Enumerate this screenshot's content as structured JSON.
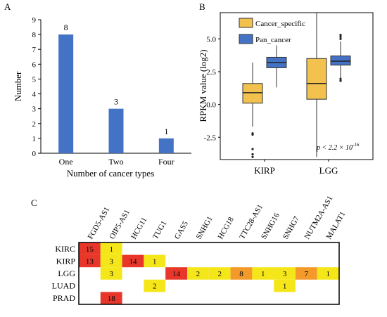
{
  "panel_labels": {
    "a": "A",
    "b": "B",
    "c": "C"
  },
  "chart_data": [
    {
      "type": "bar",
      "panel": "A",
      "categories": [
        "One",
        "Two",
        "Four"
      ],
      "values": [
        8,
        3,
        1
      ],
      "data_labels": [
        "8",
        "3",
        "1"
      ],
      "xlabel": "Number of cancer types",
      "ylabel": "Number",
      "ylim": [
        0,
        9
      ],
      "yticks": [
        "0",
        "1",
        "2",
        "3",
        "4",
        "5",
        "6",
        "7",
        "8",
        "9"
      ],
      "colors": {
        "bar": "#4472c4"
      }
    },
    {
      "type": "box",
      "panel": "B",
      "categories": [
        "KIRP",
        "LGG"
      ],
      "ylabel": "RPKM value (log2)",
      "yticks": [
        "-2.5",
        "0.0",
        "2.5",
        "5.0"
      ],
      "ytick_values": [
        -2.5,
        0,
        2.5,
        5
      ],
      "ylim": [
        -4.2,
        7.0
      ],
      "legend_position": "top-left",
      "annotation": "p < 2.2 × 10",
      "annotation_exp": "-16",
      "series": [
        {
          "name": "Cancer_specific",
          "color": "#f2c14e",
          "boxes": [
            {
              "q1": 0.1,
              "median": 0.9,
              "q3": 1.6,
              "wmin": -1.7,
              "wmax": 3.2,
              "outliers": [
                -2.2,
                -2.3,
                -3.4,
                -3.8,
                -4.0
              ]
            },
            {
              "q1": 0.4,
              "median": 1.6,
              "q3": 3.5,
              "wmin": -4.0,
              "wmax": 7.0,
              "outliers": []
            }
          ]
        },
        {
          "name": "Pan_cancer",
          "color": "#4472c4",
          "boxes": [
            {
              "q1": 2.8,
              "median": 3.2,
              "q3": 3.6,
              "wmin": 1.3,
              "wmax": 4.5,
              "outliers": []
            },
            {
              "q1": 3.0,
              "median": 3.3,
              "q3": 3.7,
              "wmin": 2.0,
              "wmax": 4.8,
              "outliers": [
                1.8,
                1.95,
                5.0,
                5.15,
                5.3
              ]
            }
          ]
        }
      ]
    },
    {
      "type": "heatmap",
      "panel": "C",
      "columns": [
        "FGD5-AS1",
        "OIP5-AS1",
        "HCG11",
        "TUG1",
        "GAS5",
        "SNHG1",
        "HCG18",
        "TTC28-AS1",
        "SNHG16",
        "SNHG7",
        "NUTM2A-AS1",
        "MALAT1"
      ],
      "rows": [
        "KIRC",
        "KIRP",
        "LGG",
        "LUAD",
        "PRAD"
      ],
      "cells": [
        {
          "row": 0,
          "col": 0,
          "value": 15,
          "label": "15"
        },
        {
          "row": 0,
          "col": 1,
          "value": 1,
          "label": "1"
        },
        {
          "row": 1,
          "col": 0,
          "value": 13,
          "label": "13"
        },
        {
          "row": 1,
          "col": 1,
          "value": 3,
          "label": "3"
        },
        {
          "row": 1,
          "col": 2,
          "value": 14,
          "label": "14"
        },
        {
          "row": 1,
          "col": 3,
          "value": 1,
          "label": "1"
        },
        {
          "row": 2,
          "col": 1,
          "value": 3,
          "label": "3"
        },
        {
          "row": 2,
          "col": 4,
          "value": 14,
          "label": "14"
        },
        {
          "row": 2,
          "col": 5,
          "value": 2,
          "label": "2"
        },
        {
          "row": 2,
          "col": 6,
          "value": 2,
          "label": "2"
        },
        {
          "row": 2,
          "col": 7,
          "value": 8,
          "label": "8"
        },
        {
          "row": 2,
          "col": 8,
          "value": 1,
          "label": "1"
        },
        {
          "row": 2,
          "col": 9,
          "value": 3,
          "label": "3"
        },
        {
          "row": 2,
          "col": 10,
          "value": 7,
          "label": "7"
        },
        {
          "row": 2,
          "col": 11,
          "value": 1,
          "label": "1"
        },
        {
          "row": 3,
          "col": 3,
          "value": 2,
          "label": "2"
        },
        {
          "row": 3,
          "col": 9,
          "value": 1,
          "label": "1"
        },
        {
          "row": 4,
          "col": 1,
          "value": 18,
          "label": "18"
        }
      ],
      "colors": {
        "low": "#f5e61a",
        "mid": "#f39a2a",
        "high": "#e8372a"
      }
    }
  ]
}
